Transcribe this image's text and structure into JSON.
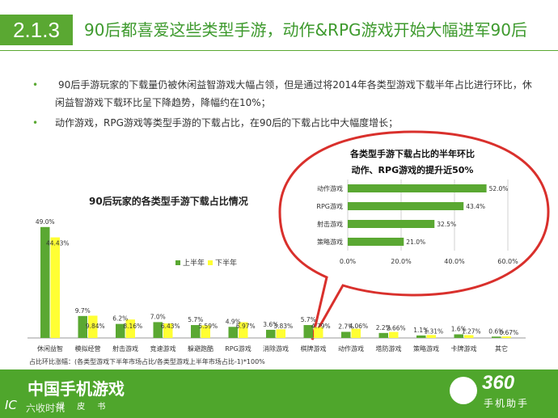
{
  "header": {
    "section_number": "2.1.3",
    "title": "90后都喜爱这些类型手游，动作&RPG游戏开始大幅进军90后"
  },
  "bullets": [
    "90后手游玩家的下载量仍被休闲益智游戏大幅占领，但是通过将2014年各类型游戏下载半年占比进行环比，休闲益智游戏下载环比呈下降趋势，降幅约在10%；",
    "动作游戏，RPG游戏等类型手游的下载占比，在90后的下载占比中大幅度增长；"
  ],
  "bullet_symbol": "•",
  "footer": {
    "brand_title": "中国手机游戏",
    "brand_subtitle": "绿 皮 书",
    "ic_mark": "IC",
    "watermark": "六收时讯",
    "logo_number": "360",
    "logo_name": "手机助手"
  },
  "colors": {
    "green": "#5aa832",
    "yellow": "#ffff33",
    "bubble_border": "#d9302c",
    "footer": "#4fa62c"
  },
  "chart_data": [
    {
      "type": "bar",
      "title": "90后玩家的各类型手游下载占比情况",
      "categories": [
        "休闲益智",
        "模拟经营",
        "射击游戏",
        "竞速游戏",
        "躲避跑酷",
        "RPG游戏",
        "消除游戏",
        "棋牌游戏",
        "动作游戏",
        "塔防游戏",
        "策略游戏",
        "卡牌游戏",
        "其它"
      ],
      "series": [
        {
          "name": "上半年",
          "values": [
            49.0,
            9.7,
            6.2,
            7.0,
            5.7,
            4.9,
            3.6,
            5.7,
            2.7,
            2.2,
            1.1,
            1.6,
            0.6
          ]
        },
        {
          "name": "下半年",
          "values": [
            44.43,
            9.84,
            8.16,
            6.43,
            5.59,
            6.97,
            3.83,
            4.79,
            4.06,
            2.66,
            1.31,
            1.27,
            0.67
          ]
        }
      ],
      "labels": {
        "first": [
          "49.0%",
          "9.7%",
          "6.2%",
          "7.0%",
          "5.7%",
          "4.9%",
          "3.6%",
          "5.7%",
          "2.7%",
          "2.2%",
          "1.1%",
          "1.6%",
          "0.6%"
        ],
        "second": [
          "44.43%",
          "9.84%",
          "8.16%",
          "6.43%",
          "5.59%",
          "6.97%",
          "3.83%",
          "4.79%",
          "4.06%",
          "2.66%",
          "1.31%",
          "1.27%",
          "0.67%"
        ]
      },
      "legend_position": "right",
      "footnote": "占比环比涨幅：(各类型游戏下半年市场占比/各类型游戏上半年市场占比-1)*100%"
    },
    {
      "type": "bar",
      "orientation": "horizontal",
      "title_lines": [
        "各类型手游下载占比的半年环比",
        "动作、RPG游戏的提升近50%"
      ],
      "categories": [
        "动作游戏",
        "RPG游戏",
        "射击游戏",
        "策略游戏"
      ],
      "values": [
        52.0,
        43.4,
        32.5,
        21.0
      ],
      "value_labels": [
        "52.0%",
        "43.4%",
        "32.5%",
        "21.0%"
      ],
      "xlim": [
        0,
        60
      ],
      "xticks": [
        "0.0%",
        "20.0%",
        "40.0%",
        "60.0%"
      ],
      "grid": true
    }
  ]
}
